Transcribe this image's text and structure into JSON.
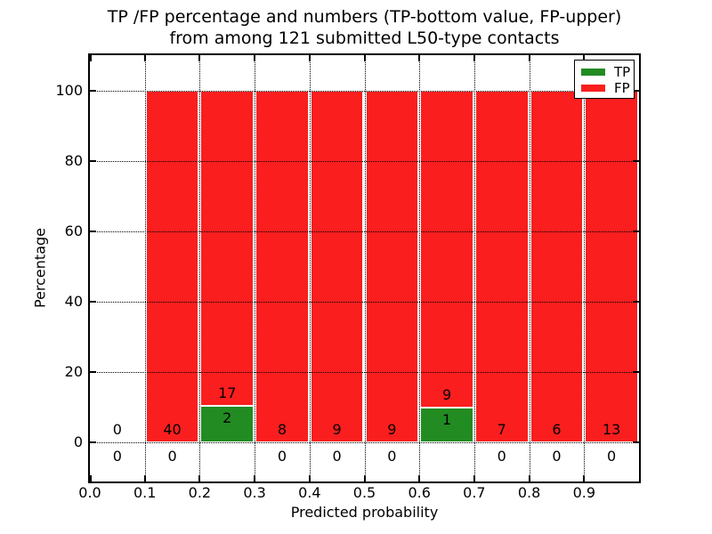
{
  "title": {
    "line1": "TP /FP percentage and numbers (TP-bottom value, FP-upper)",
    "line2": "from among 121 submitted L50-type contacts"
  },
  "legend": {
    "items": [
      {
        "label": "TP",
        "color": "#228b22"
      },
      {
        "label": "FP",
        "color": "#fa1e1e"
      }
    ]
  },
  "chart_data": {
    "type": "bar",
    "stacked": true,
    "normalized_to_percent": true,
    "title": "TP /FP percentage and numbers (TP-bottom value, FP-upper)\nfrom among 121 submitted L50-type contacts",
    "xlabel": "Predicted probability",
    "ylabel": "Percentage",
    "total_contacts": 121,
    "bin_edges": [
      0.0,
      0.1,
      0.2,
      0.3,
      0.4,
      0.5,
      0.6,
      0.7,
      0.8,
      0.9,
      1.0
    ],
    "categories": [
      "0.0-0.1",
      "0.1-0.2",
      "0.2-0.3",
      "0.3-0.4",
      "0.4-0.5",
      "0.5-0.6",
      "0.6-0.7",
      "0.7-0.8",
      "0.8-0.9",
      "0.9-1.0"
    ],
    "series": [
      {
        "name": "TP",
        "color": "#228b22",
        "counts": [
          0,
          0,
          2,
          0,
          0,
          0,
          1,
          0,
          0,
          0
        ],
        "percentages": [
          0,
          0,
          10.53,
          0,
          0,
          0,
          10.0,
          0,
          0,
          0
        ]
      },
      {
        "name": "FP",
        "color": "#fa1e1e",
        "counts": [
          0,
          40,
          17,
          8,
          9,
          9,
          9,
          7,
          6,
          13
        ],
        "percentages": [
          0,
          100,
          89.47,
          100,
          100,
          100,
          90.0,
          100,
          100,
          100
        ]
      }
    ],
    "bar_number_labels": {
      "upper_fp": [
        "0",
        "40",
        "17",
        "8",
        "9",
        "9",
        "9",
        "7",
        "6",
        "13"
      ],
      "lower_tp": [
        "0",
        "0",
        "2",
        "0",
        "0",
        "0",
        "1",
        "0",
        "0",
        "0"
      ]
    },
    "x_ticks": [
      "0.0",
      "0.1",
      "0.2",
      "0.3",
      "0.4",
      "0.5",
      "0.6",
      "0.7",
      "0.8",
      "0.9"
    ],
    "y_ticks": [
      "0",
      "20",
      "40",
      "60",
      "80",
      "100"
    ],
    "y_tick_values": [
      0,
      20,
      40,
      60,
      80,
      100
    ],
    "xlim": [
      0.0,
      1.0
    ],
    "ylim": [
      -11,
      110
    ],
    "grid": true,
    "grid_style": "dotted",
    "legend_position": "upper right"
  }
}
